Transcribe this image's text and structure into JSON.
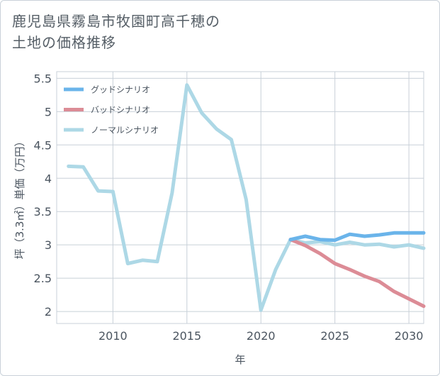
{
  "title_line1": "鹿児島県霧島市牧園町高千穂の",
  "title_line2": "土地の価格推移",
  "chart_data": {
    "type": "line",
    "xlabel": "年",
    "ylabel": "坪（3.3㎡）単価（万円）",
    "xlim": [
      2006.2,
      2031
    ],
    "ylim": [
      1.82,
      5.6
    ],
    "xticks": [
      2010,
      2015,
      2020,
      2025,
      2030
    ],
    "yticks": [
      2,
      2.5,
      3,
      3.5,
      4,
      4.5,
      5,
      5.5
    ],
    "ytick_labels": [
      "2",
      "2.5",
      "3",
      "3.5",
      "4",
      "4.5",
      "5",
      "5.5"
    ],
    "grid": true,
    "legend_position": "top-left",
    "series": [
      {
        "name": "ノーマルシナリオ",
        "color": "#add8e6",
        "x": [
          2007,
          2008,
          2009,
          2010,
          2011,
          2012,
          2013,
          2014,
          2015,
          2016,
          2017,
          2018,
          2019,
          2020,
          2021,
          2022,
          2023,
          2024,
          2025,
          2026,
          2027,
          2028,
          2029,
          2030,
          2031
        ],
        "values": [
          4.18,
          4.17,
          3.81,
          3.8,
          2.72,
          2.77,
          2.75,
          3.78,
          5.4,
          4.98,
          4.74,
          4.58,
          3.68,
          2.02,
          2.63,
          3.08,
          3.03,
          3.05,
          3.0,
          3.04,
          3.0,
          3.01,
          2.97,
          3.0,
          2.95
        ]
      },
      {
        "name": "バッドシナリオ",
        "color": "#dc8c96",
        "x": [
          2022,
          2023,
          2024,
          2025,
          2026,
          2027,
          2028,
          2029,
          2030,
          2031
        ],
        "values": [
          3.08,
          2.99,
          2.87,
          2.72,
          2.63,
          2.53,
          2.45,
          2.3,
          2.19,
          2.08
        ]
      },
      {
        "name": "グッドシナリオ",
        "color": "#6ab4ea",
        "x": [
          2022,
          2023,
          2024,
          2025,
          2026,
          2027,
          2028,
          2029,
          2030,
          2031
        ],
        "values": [
          3.08,
          3.13,
          3.08,
          3.07,
          3.16,
          3.13,
          3.15,
          3.18,
          3.18,
          3.18
        ]
      }
    ],
    "legend": [
      {
        "name": "グッドシナリオ",
        "color": "#6ab4ea"
      },
      {
        "name": "バッドシナリオ",
        "color": "#dc8c96"
      },
      {
        "name": "ノーマルシナリオ",
        "color": "#add8e6"
      }
    ]
  }
}
